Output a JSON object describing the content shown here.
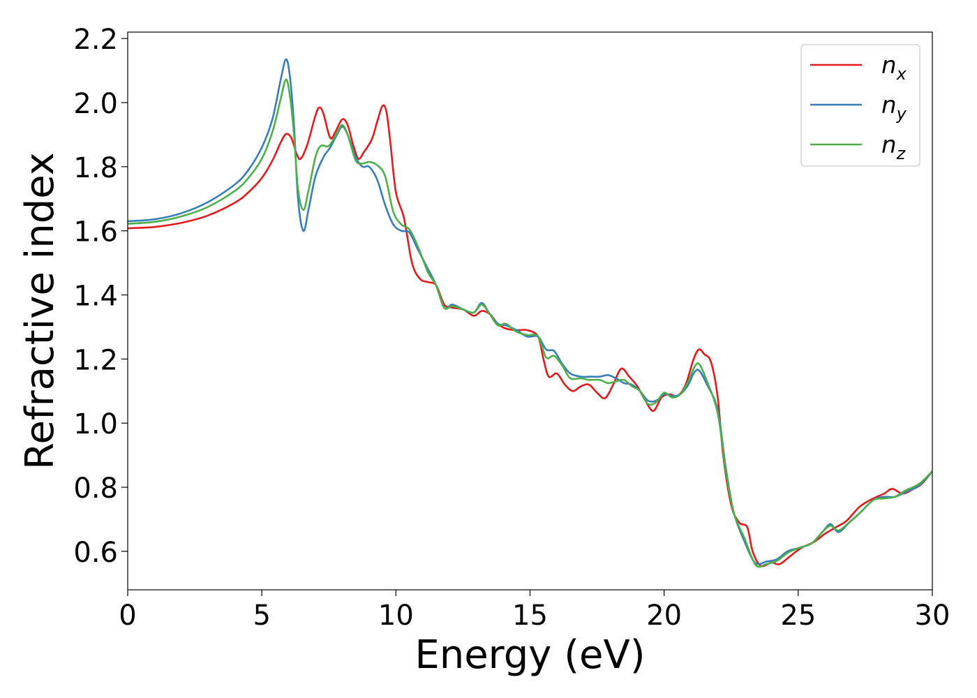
{
  "chart_data": {
    "type": "line",
    "title": "",
    "xlabel": "Energy (eV)",
    "ylabel": "Refractive index",
    "xlim": [
      0,
      30
    ],
    "ylim": [
      0.48,
      2.22
    ],
    "xticks": [
      0,
      5,
      10,
      15,
      20,
      25,
      30
    ],
    "xtick_labels": [
      "0",
      "5",
      "10",
      "15",
      "20",
      "25",
      "30"
    ],
    "yticks": [
      0.6,
      0.8,
      1.0,
      1.2,
      1.4,
      1.6,
      1.8,
      2.0,
      2.2
    ],
    "ytick_labels": [
      "0.6",
      "0.8",
      "1.0",
      "1.2",
      "1.4",
      "1.6",
      "1.8",
      "2.0",
      "2.2"
    ],
    "grid": false,
    "legend": "top-right",
    "series": [
      {
        "name": "n_x",
        "label_main": "n",
        "label_sub": "x",
        "color": "#e41a1c",
        "points": [
          [
            0,
            1.608
          ],
          [
            1,
            1.612
          ],
          [
            2,
            1.625
          ],
          [
            3,
            1.648
          ],
          [
            4,
            1.688
          ],
          [
            4.5,
            1.72
          ],
          [
            5,
            1.765
          ],
          [
            5.4,
            1.82
          ],
          [
            5.7,
            1.875
          ],
          [
            5.9,
            1.902
          ],
          [
            6.1,
            1.89
          ],
          [
            6.3,
            1.84
          ],
          [
            6.45,
            1.825
          ],
          [
            6.7,
            1.87
          ],
          [
            7.0,
            1.96
          ],
          [
            7.15,
            1.985
          ],
          [
            7.3,
            1.965
          ],
          [
            7.55,
            1.89
          ],
          [
            7.75,
            1.91
          ],
          [
            8.0,
            1.948
          ],
          [
            8.2,
            1.93
          ],
          [
            8.4,
            1.87
          ],
          [
            8.6,
            1.825
          ],
          [
            8.8,
            1.845
          ],
          [
            9.1,
            1.885
          ],
          [
            9.3,
            1.94
          ],
          [
            9.5,
            1.99
          ],
          [
            9.65,
            1.97
          ],
          [
            9.8,
            1.87
          ],
          [
            10.0,
            1.72
          ],
          [
            10.3,
            1.64
          ],
          [
            10.6,
            1.5
          ],
          [
            10.9,
            1.45
          ],
          [
            11.2,
            1.44
          ],
          [
            11.5,
            1.43
          ],
          [
            11.8,
            1.37
          ],
          [
            12.1,
            1.36
          ],
          [
            12.5,
            1.355
          ],
          [
            12.9,
            1.335
          ],
          [
            13.2,
            1.35
          ],
          [
            13.5,
            1.34
          ],
          [
            13.8,
            1.31
          ],
          [
            14.1,
            1.295
          ],
          [
            14.5,
            1.29
          ],
          [
            14.9,
            1.29
          ],
          [
            15.3,
            1.27
          ],
          [
            15.5,
            1.2
          ],
          [
            15.7,
            1.145
          ],
          [
            16.0,
            1.155
          ],
          [
            16.3,
            1.12
          ],
          [
            16.6,
            1.1
          ],
          [
            16.9,
            1.115
          ],
          [
            17.2,
            1.12
          ],
          [
            17.5,
            1.095
          ],
          [
            17.8,
            1.078
          ],
          [
            18.1,
            1.12
          ],
          [
            18.4,
            1.17
          ],
          [
            18.7,
            1.145
          ],
          [
            19.0,
            1.115
          ],
          [
            19.3,
            1.07
          ],
          [
            19.6,
            1.038
          ],
          [
            19.9,
            1.08
          ],
          [
            20.2,
            1.09
          ],
          [
            20.5,
            1.085
          ],
          [
            20.8,
            1.12
          ],
          [
            21.1,
            1.2
          ],
          [
            21.3,
            1.23
          ],
          [
            21.5,
            1.215
          ],
          [
            21.75,
            1.19
          ],
          [
            22.0,
            1.08
          ],
          [
            22.2,
            0.9
          ],
          [
            22.5,
            0.745
          ],
          [
            22.8,
            0.69
          ],
          [
            23.1,
            0.675
          ],
          [
            23.3,
            0.6
          ],
          [
            23.6,
            0.555
          ],
          [
            24.0,
            0.565
          ],
          [
            24.3,
            0.56
          ],
          [
            24.7,
            0.585
          ],
          [
            25.1,
            0.61
          ],
          [
            25.6,
            0.63
          ],
          [
            26.0,
            0.655
          ],
          [
            26.4,
            0.675
          ],
          [
            26.8,
            0.695
          ],
          [
            27.3,
            0.74
          ],
          [
            27.8,
            0.765
          ],
          [
            28.2,
            0.78
          ],
          [
            28.5,
            0.795
          ],
          [
            28.9,
            0.78
          ],
          [
            29.3,
            0.795
          ],
          [
            29.6,
            0.81
          ],
          [
            30,
            0.85
          ]
        ]
      },
      {
        "name": "n_y",
        "label_main": "n",
        "label_sub": "y",
        "color": "#377eb8",
        "points": [
          [
            0,
            1.63
          ],
          [
            1,
            1.636
          ],
          [
            2,
            1.655
          ],
          [
            3,
            1.69
          ],
          [
            4,
            1.745
          ],
          [
            4.5,
            1.79
          ],
          [
            5,
            1.86
          ],
          [
            5.4,
            1.95
          ],
          [
            5.7,
            2.07
          ],
          [
            5.9,
            2.135
          ],
          [
            6.05,
            2.08
          ],
          [
            6.2,
            1.93
          ],
          [
            6.35,
            1.7
          ],
          [
            6.55,
            1.6
          ],
          [
            6.75,
            1.67
          ],
          [
            7.0,
            1.77
          ],
          [
            7.3,
            1.83
          ],
          [
            7.55,
            1.86
          ],
          [
            7.8,
            1.9
          ],
          [
            8.0,
            1.925
          ],
          [
            8.2,
            1.9
          ],
          [
            8.5,
            1.83
          ],
          [
            8.75,
            1.8
          ],
          [
            9.0,
            1.8
          ],
          [
            9.3,
            1.76
          ],
          [
            9.6,
            1.68
          ],
          [
            9.9,
            1.62
          ],
          [
            10.2,
            1.6
          ],
          [
            10.5,
            1.595
          ],
          [
            10.8,
            1.545
          ],
          [
            11.2,
            1.48
          ],
          [
            11.5,
            1.43
          ],
          [
            11.8,
            1.36
          ],
          [
            12.1,
            1.37
          ],
          [
            12.5,
            1.355
          ],
          [
            12.9,
            1.345
          ],
          [
            13.2,
            1.375
          ],
          [
            13.5,
            1.34
          ],
          [
            13.8,
            1.31
          ],
          [
            14.1,
            1.305
          ],
          [
            14.5,
            1.29
          ],
          [
            14.9,
            1.27
          ],
          [
            15.3,
            1.27
          ],
          [
            15.6,
            1.23
          ],
          [
            15.9,
            1.225
          ],
          [
            16.2,
            1.185
          ],
          [
            16.5,
            1.155
          ],
          [
            16.9,
            1.145
          ],
          [
            17.2,
            1.145
          ],
          [
            17.6,
            1.145
          ],
          [
            17.9,
            1.15
          ],
          [
            18.2,
            1.14
          ],
          [
            18.5,
            1.125
          ],
          [
            18.8,
            1.12
          ],
          [
            19.1,
            1.1
          ],
          [
            19.4,
            1.07
          ],
          [
            19.7,
            1.07
          ],
          [
            20.0,
            1.09
          ],
          [
            20.3,
            1.085
          ],
          [
            20.6,
            1.09
          ],
          [
            20.9,
            1.12
          ],
          [
            21.1,
            1.155
          ],
          [
            21.3,
            1.165
          ],
          [
            21.6,
            1.12
          ],
          [
            22.0,
            1.04
          ],
          [
            22.3,
            0.86
          ],
          [
            22.6,
            0.72
          ],
          [
            23.0,
            0.63
          ],
          [
            23.3,
            0.575
          ],
          [
            23.5,
            0.56
          ],
          [
            23.8,
            0.568
          ],
          [
            24.2,
            0.575
          ],
          [
            24.6,
            0.6
          ],
          [
            25.0,
            0.61
          ],
          [
            25.5,
            0.625
          ],
          [
            25.9,
            0.66
          ],
          [
            26.2,
            0.685
          ],
          [
            26.5,
            0.66
          ],
          [
            26.9,
            0.69
          ],
          [
            27.3,
            0.72
          ],
          [
            27.8,
            0.76
          ],
          [
            28.2,
            0.77
          ],
          [
            28.6,
            0.77
          ],
          [
            29.0,
            0.785
          ],
          [
            29.5,
            0.805
          ],
          [
            30,
            0.85
          ]
        ]
      },
      {
        "name": "n_z",
        "label_main": "n",
        "label_sub": "z",
        "color": "#4daf4a",
        "points": [
          [
            0,
            1.622
          ],
          [
            1,
            1.628
          ],
          [
            2,
            1.645
          ],
          [
            3,
            1.675
          ],
          [
            4,
            1.725
          ],
          [
            4.5,
            1.765
          ],
          [
            5,
            1.825
          ],
          [
            5.4,
            1.91
          ],
          [
            5.7,
            2.01
          ],
          [
            5.9,
            2.072
          ],
          [
            6.05,
            2.02
          ],
          [
            6.2,
            1.9
          ],
          [
            6.35,
            1.73
          ],
          [
            6.55,
            1.665
          ],
          [
            6.75,
            1.73
          ],
          [
            7.0,
            1.83
          ],
          [
            7.2,
            1.865
          ],
          [
            7.5,
            1.865
          ],
          [
            7.8,
            1.905
          ],
          [
            8.0,
            1.93
          ],
          [
            8.2,
            1.9
          ],
          [
            8.5,
            1.82
          ],
          [
            8.75,
            1.81
          ],
          [
            9.0,
            1.815
          ],
          [
            9.3,
            1.805
          ],
          [
            9.6,
            1.77
          ],
          [
            9.9,
            1.66
          ],
          [
            10.2,
            1.62
          ],
          [
            10.5,
            1.605
          ],
          [
            10.8,
            1.555
          ],
          [
            11.2,
            1.47
          ],
          [
            11.5,
            1.43
          ],
          [
            11.8,
            1.36
          ],
          [
            12.1,
            1.365
          ],
          [
            12.5,
            1.355
          ],
          [
            12.9,
            1.345
          ],
          [
            13.2,
            1.37
          ],
          [
            13.5,
            1.34
          ],
          [
            13.8,
            1.305
          ],
          [
            14.1,
            1.31
          ],
          [
            14.5,
            1.285
          ],
          [
            14.9,
            1.275
          ],
          [
            15.3,
            1.27
          ],
          [
            15.6,
            1.205
          ],
          [
            15.9,
            1.21
          ],
          [
            16.2,
            1.18
          ],
          [
            16.5,
            1.14
          ],
          [
            16.9,
            1.14
          ],
          [
            17.2,
            1.135
          ],
          [
            17.6,
            1.135
          ],
          [
            17.9,
            1.125
          ],
          [
            18.2,
            1.13
          ],
          [
            18.5,
            1.135
          ],
          [
            18.8,
            1.115
          ],
          [
            19.1,
            1.1
          ],
          [
            19.4,
            1.06
          ],
          [
            19.7,
            1.065
          ],
          [
            20.0,
            1.095
          ],
          [
            20.3,
            1.08
          ],
          [
            20.6,
            1.09
          ],
          [
            20.9,
            1.13
          ],
          [
            21.1,
            1.17
          ],
          [
            21.3,
            1.185
          ],
          [
            21.6,
            1.13
          ],
          [
            22.0,
            1.03
          ],
          [
            22.3,
            0.85
          ],
          [
            22.6,
            0.72
          ],
          [
            23.0,
            0.64
          ],
          [
            23.3,
            0.575
          ],
          [
            23.5,
            0.552
          ],
          [
            23.8,
            0.56
          ],
          [
            24.2,
            0.57
          ],
          [
            24.6,
            0.595
          ],
          [
            25.0,
            0.61
          ],
          [
            25.5,
            0.625
          ],
          [
            25.9,
            0.66
          ],
          [
            26.2,
            0.68
          ],
          [
            26.5,
            0.665
          ],
          [
            26.9,
            0.69
          ],
          [
            27.3,
            0.72
          ],
          [
            27.8,
            0.76
          ],
          [
            28.2,
            0.765
          ],
          [
            28.6,
            0.77
          ],
          [
            29.0,
            0.79
          ],
          [
            29.5,
            0.81
          ],
          [
            30,
            0.85
          ]
        ]
      }
    ]
  }
}
